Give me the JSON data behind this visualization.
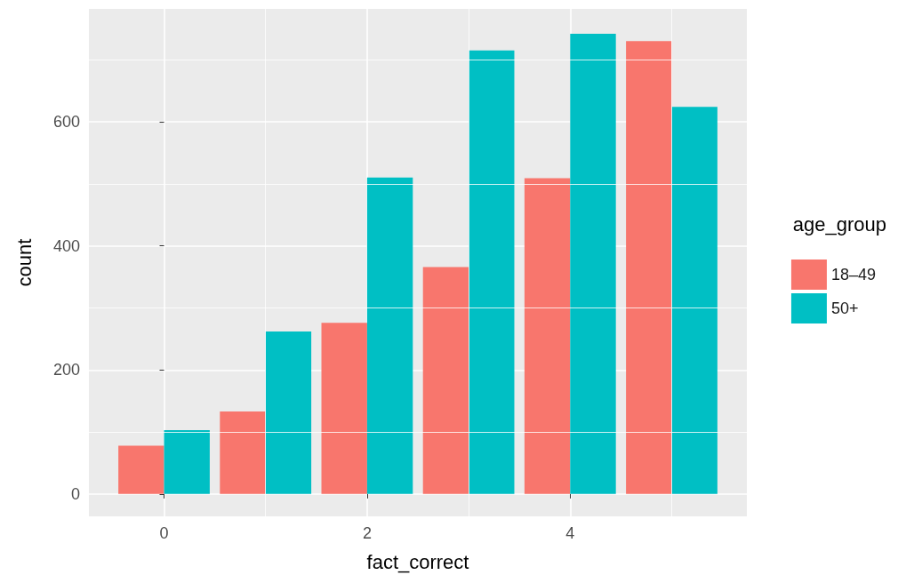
{
  "chart_data": {
    "type": "bar",
    "xlabel": "fact_correct",
    "ylabel": "count",
    "legend_title": "age_group",
    "x": [
      0,
      1,
      2,
      3,
      4,
      5
    ],
    "series": [
      {
        "name": "18–49",
        "color": "#f8766d",
        "values": [
          78,
          133,
          276,
          366,
          509,
          730
        ]
      },
      {
        "name": "50+",
        "color": "#00bfc4",
        "values": [
          103,
          262,
          510,
          715,
          742,
          624
        ]
      }
    ],
    "xlim": [
      -0.74,
      5.74
    ],
    "xticks": [
      0,
      2,
      4
    ],
    "ylim": [
      -36,
      782
    ],
    "yticks": [
      0,
      200,
      400,
      600
    ],
    "grid": true,
    "legend": "right"
  }
}
